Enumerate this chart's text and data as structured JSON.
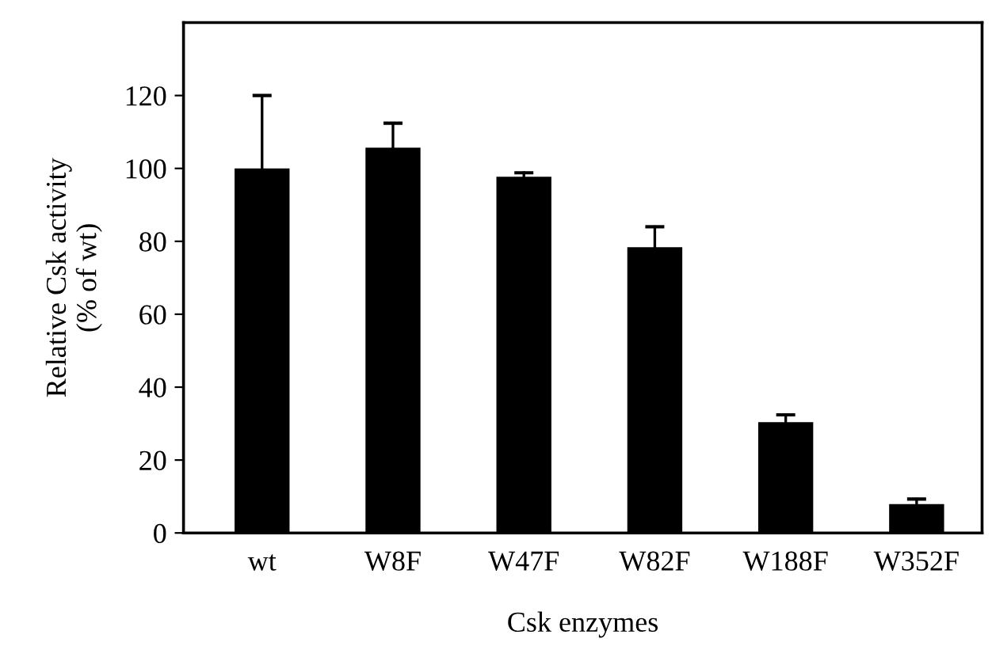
{
  "chart_data": {
    "type": "bar",
    "xlabel": "Csk enzymes",
    "ylabel": "Relative Csk activity\n(% of wt)",
    "categories": [
      "wt",
      "W8F",
      "W47F",
      "W82F",
      "W188F",
      "W352F"
    ],
    "values": [
      100,
      105.7,
      97.7,
      78.4,
      30.4,
      7.9
    ],
    "errors": [
      [
        100,
        120
      ],
      [
        105.7,
        112.4
      ],
      [
        97.7,
        98.8
      ],
      [
        78.4,
        84
      ],
      [
        30.4,
        32.4
      ],
      [
        7.9,
        9.3
      ]
    ],
    "color": "#000000",
    "ylim": [
      0,
      140
    ],
    "yticks": [
      0,
      20,
      40,
      60,
      80,
      100,
      120
    ],
    "grid": false
  }
}
